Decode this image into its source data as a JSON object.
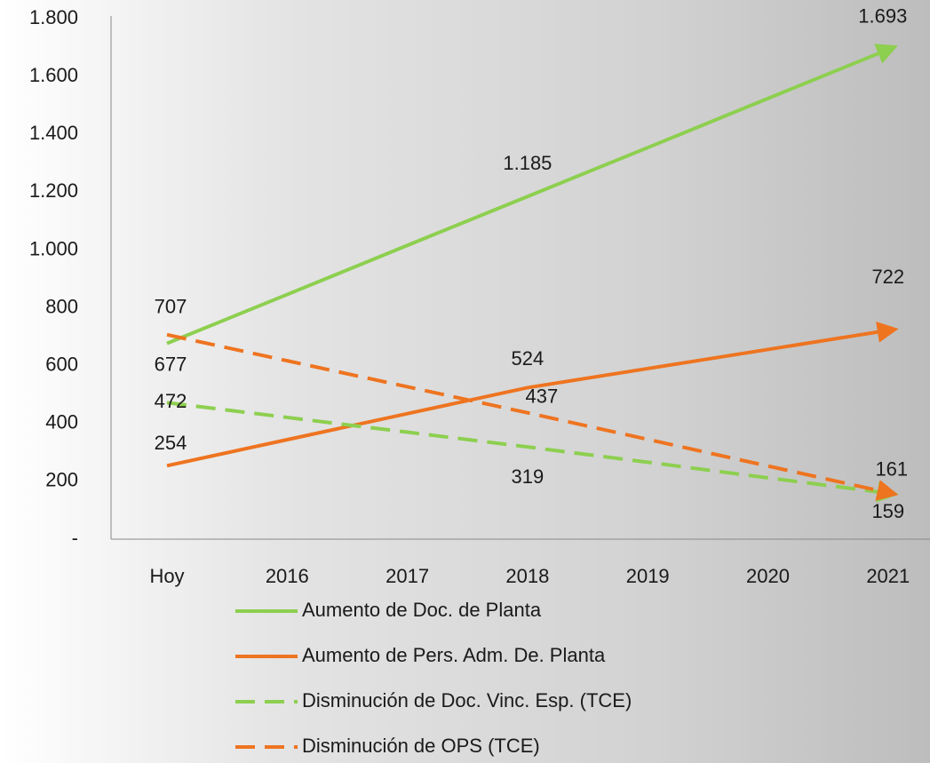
{
  "chart_data": {
    "type": "line",
    "categories": [
      "Hoy",
      "2016",
      "2017",
      "2018",
      "2019",
      "2020",
      "2021"
    ],
    "ylim": [
      0,
      1800
    ],
    "yticks": [
      {
        "value": 0,
        "label": "-"
      },
      200,
      400,
      600,
      800,
      {
        "value": 1000,
        "label": "1.000"
      },
      {
        "value": 1200,
        "label": "1.200"
      },
      {
        "value": 1400,
        "label": "1.400"
      },
      {
        "value": 1600,
        "label": "1.600"
      },
      {
        "value": 1800,
        "label": "1.800"
      }
    ],
    "legend": "bottom",
    "series": [
      {
        "name": "Aumento de Doc. de Planta",
        "color": "#8dcf4f",
        "dash": "solid",
        "values": [
          677,
          846,
          1016,
          1185,
          1354,
          1524,
          1693
        ],
        "value_labels": [
          "677",
          null,
          null,
          "1.185",
          null,
          null,
          "1.693"
        ]
      },
      {
        "name": "Aumento de Pers. Adm. De. Planta",
        "color": "#ee7420",
        "dash": "solid",
        "values": [
          254,
          344,
          434,
          524,
          590,
          656,
          722
        ],
        "value_labels": [
          "254",
          null,
          null,
          "524",
          null,
          null,
          "722"
        ]
      },
      {
        "name": "Disminución de Doc. Vinc. Esp. (TCE)",
        "color": "#8dcf4f",
        "dash": "dashed",
        "values": [
          472,
          421,
          370,
          319,
          266,
          212,
          159
        ],
        "value_labels": [
          "472",
          null,
          null,
          "319",
          null,
          null,
          "159"
        ]
      },
      {
        "name": "Disminución de OPS (TCE)",
        "color": "#ee7420",
        "dash": "dashed",
        "values": [
          707,
          617,
          527,
          437,
          345,
          253,
          161
        ],
        "value_labels": [
          "707",
          null,
          null,
          "437",
          null,
          null,
          "161"
        ]
      }
    ]
  }
}
